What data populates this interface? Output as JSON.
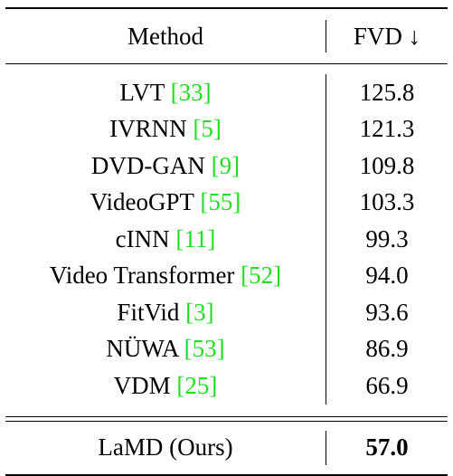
{
  "table": {
    "header": {
      "method": "Method",
      "fvd": "FVD ↓"
    },
    "rows": [
      {
        "method": "LVT",
        "cite": "33",
        "fvd": "125.8"
      },
      {
        "method": "IVRNN",
        "cite": "5",
        "fvd": "121.3"
      },
      {
        "method": "DVD-GAN",
        "cite": "9",
        "fvd": "109.8"
      },
      {
        "method": "VideoGPT",
        "cite": "55",
        "fvd": "103.3"
      },
      {
        "method": "cINN",
        "cite": "11",
        "fvd": "99.3"
      },
      {
        "method": "Video Transformer",
        "cite": "52",
        "fvd": "94.0"
      },
      {
        "method": "FitVid",
        "cite": "3",
        "fvd": "93.6"
      },
      {
        "method": "NÜWA",
        "cite": "53",
        "fvd": "86.9"
      },
      {
        "method": "VDM",
        "cite": "25",
        "fvd": "66.9"
      }
    ],
    "ours": {
      "method": "LaMD (Ours)",
      "fvd": "57.0"
    },
    "colors": {
      "citation": "#22dd22",
      "text": "#000000"
    }
  }
}
